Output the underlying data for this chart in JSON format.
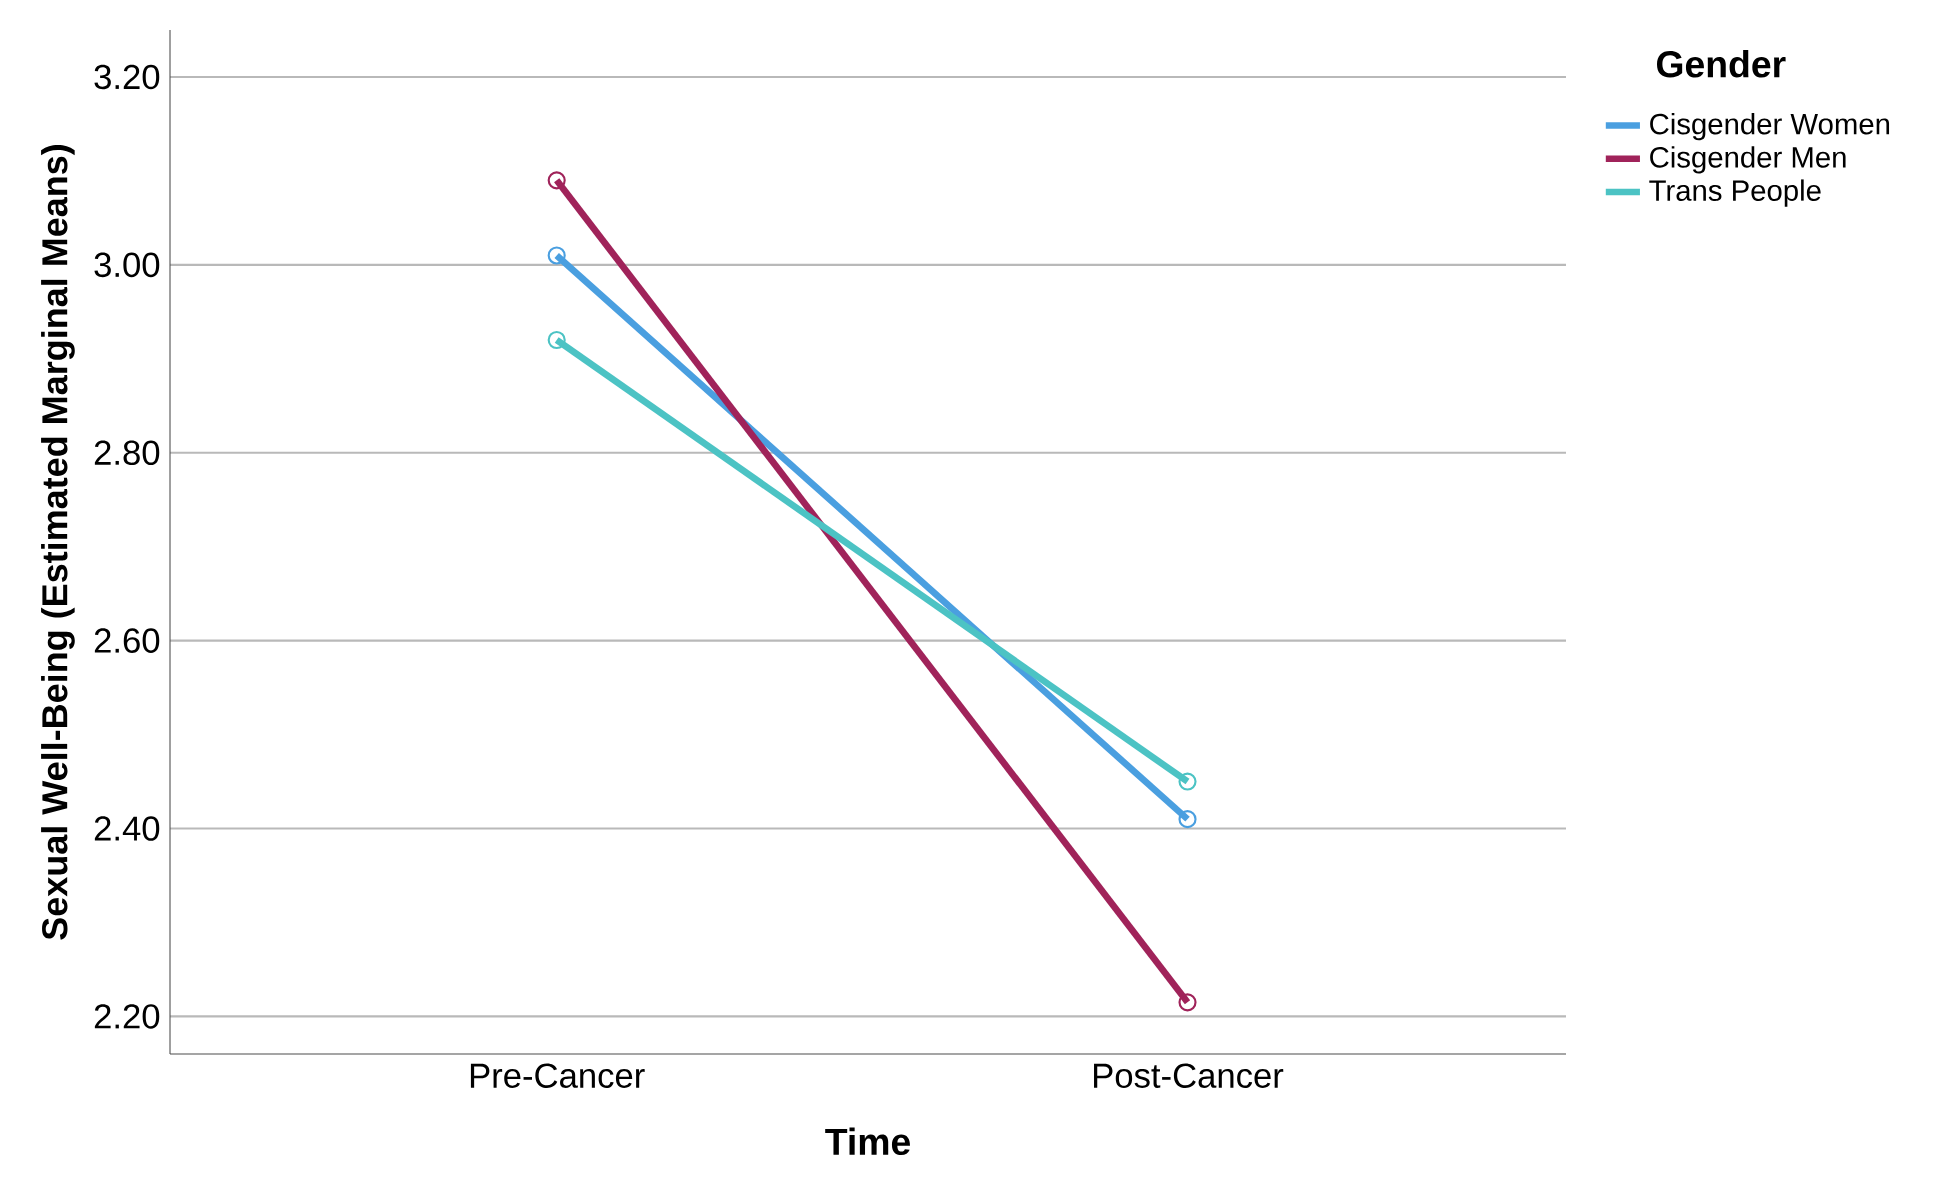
{
  "chart_data": {
    "type": "line",
    "xlabel": "Time",
    "ylabel": "Sexual Well-Being (Estimated Marginal Means)",
    "legend_title": "Gender",
    "categories": [
      "Pre-Cancer",
      "Post-Cancer"
    ],
    "series": [
      {
        "name": "Cisgender Women",
        "color": "#4a9fe0",
        "values": [
          3.01,
          2.41
        ]
      },
      {
        "name": "Cisgender Men",
        "color": "#a0235a",
        "values": [
          3.09,
          2.215
        ]
      },
      {
        "name": "Trans People",
        "color": "#4cc3c4",
        "values": [
          2.92,
          2.45
        ]
      }
    ],
    "ylim": [
      2.16,
      3.25
    ],
    "yticks": [
      {
        "value": 2.2,
        "label": "2.20"
      },
      {
        "value": 2.4,
        "label": "2.40"
      },
      {
        "value": 2.6,
        "label": "2.60"
      },
      {
        "value": 2.8,
        "label": "2.80"
      },
      {
        "value": 3.0,
        "label": "3.00"
      },
      {
        "value": 3.2,
        "label": "3.20"
      }
    ],
    "grid": "y",
    "legend": "top right",
    "marker": "circle",
    "line_style": "solid"
  }
}
